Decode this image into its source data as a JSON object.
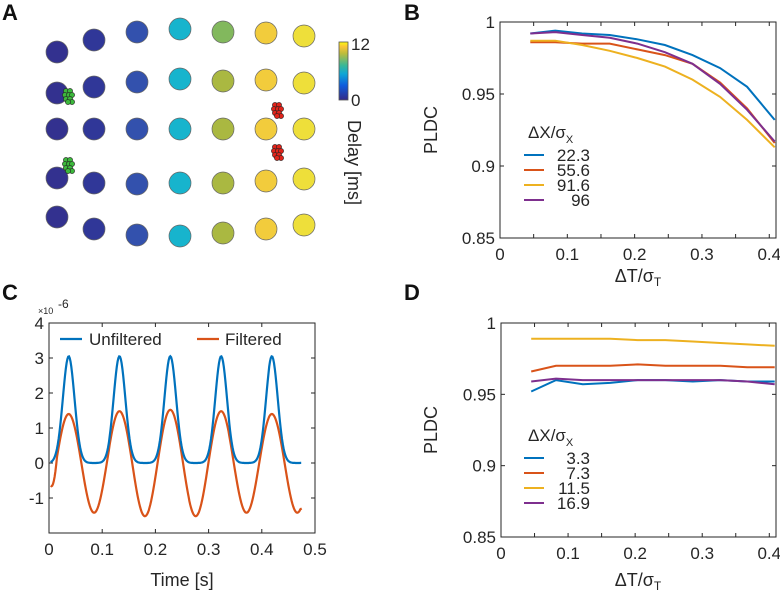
{
  "panels": {
    "a": "A",
    "b": "B",
    "c": "C",
    "d": "D"
  },
  "colors": {
    "blue": "#0072BD",
    "red": "#D95319",
    "yellow": "#EDB120",
    "purple": "#7E2F8E",
    "axis": "#262626"
  },
  "chart_data": [
    {
      "id": "A",
      "type": "scatter",
      "title": "",
      "description_grid": "5 rows x 7 columns electrode array colored by delay",
      "column_delays_ms": [
        0.4,
        0.8,
        2.0,
        5.5,
        8.6,
        11.0,
        11.8
      ],
      "row1_col5_delay_ms": 8.0,
      "colorbar": {
        "min": 0,
        "max": 12,
        "min_label": "0",
        "max_label": "12",
        "label": "Delay [ms]"
      },
      "clusters": [
        {
          "color": "#3cb83c",
          "count": 2
        },
        {
          "color": "#e0241b",
          "count": 2
        }
      ]
    },
    {
      "id": "B",
      "type": "line",
      "xlabel_main": "ΔT/σ",
      "xlabel_sub": "T",
      "ylabel": "PLDC",
      "xlim": [
        0,
        0.41
      ],
      "ylim": [
        0.85,
        1
      ],
      "xticks": [
        0,
        0.1,
        0.2,
        0.3,
        0.4
      ],
      "xtick_labels": [
        "0",
        "0.1",
        "0.2",
        "0.3",
        "0.4"
      ],
      "yticks": [
        0.85,
        0.9,
        0.95,
        1
      ],
      "ytick_labels": [
        "0.85",
        "0.9",
        "0.95",
        "1"
      ],
      "legend_title_main": "ΔX/σ",
      "legend_title_sub": "X",
      "legend_position": "center-left",
      "x": [
        0.045,
        0.082,
        0.122,
        0.163,
        0.204,
        0.245,
        0.286,
        0.327,
        0.367,
        0.408
      ],
      "series": [
        {
          "name": "22.3",
          "color": "#0072BD",
          "values": [
            0.992,
            0.994,
            0.992,
            0.991,
            0.988,
            0.984,
            0.977,
            0.968,
            0.955,
            0.932
          ]
        },
        {
          "name": "55.6",
          "color": "#D95319",
          "values": [
            0.986,
            0.986,
            0.985,
            0.985,
            0.981,
            0.977,
            0.971,
            0.958,
            0.94,
            0.916
          ]
        },
        {
          "name": "91.6",
          "color": "#EDB120",
          "values": [
            0.987,
            0.987,
            0.984,
            0.98,
            0.975,
            0.969,
            0.96,
            0.948,
            0.932,
            0.913
          ]
        },
        {
          "name": "96",
          "color": "#7E2F8E",
          "values": [
            0.992,
            0.993,
            0.991,
            0.989,
            0.985,
            0.979,
            0.971,
            0.957,
            0.939,
            0.917
          ]
        }
      ]
    },
    {
      "id": "C",
      "type": "line",
      "xlabel": "Time [s]",
      "ylabel": "",
      "exponent_label": "×10",
      "exponent_power": "-6",
      "xlim": [
        0,
        0.5
      ],
      "ylim": [
        -2,
        4
      ],
      "xticks": [
        0,
        0.1,
        0.2,
        0.3,
        0.4,
        0.5
      ],
      "xtick_labels": [
        "0",
        "0.1",
        "0.2",
        "0.3",
        "0.4",
        "0.5"
      ],
      "yticks": [
        -1,
        0,
        1,
        2,
        3,
        4
      ],
      "ytick_labels": [
        "-1",
        "0",
        "1",
        "2",
        "3",
        "4"
      ],
      "legend_position": "top",
      "t_range": [
        0.003,
        0.475
      ],
      "period_s": 0.0955,
      "first_peak_s": 0.037,
      "series": [
        {
          "name": "Unfiltered",
          "color": "#0072BD",
          "peak": 3.05,
          "baseline": 0,
          "peak_width_s": 0.011
        },
        {
          "name": "Filtered",
          "color": "#D95319",
          "peak_values": [
            1.4,
            1.48,
            1.52,
            1.48,
            1.4
          ],
          "trough_values": [
            -1.42,
            -1.52,
            -1.52,
            -1.42
          ],
          "start_value": -0.65,
          "end_value": -1.3
        }
      ]
    },
    {
      "id": "D",
      "type": "line",
      "xlabel_main": "ΔT/σ",
      "xlabel_sub": "T",
      "ylabel": "PLDC",
      "xlim": [
        0,
        0.41
      ],
      "ylim": [
        0.85,
        1
      ],
      "xticks": [
        0,
        0.1,
        0.2,
        0.3,
        0.4
      ],
      "xtick_labels": [
        "0",
        "0.1",
        "0.2",
        "0.3",
        "0.4"
      ],
      "yticks": [
        0.85,
        0.9,
        0.95,
        1
      ],
      "ytick_labels": [
        "0.85",
        "0.9",
        "0.95",
        "1"
      ],
      "legend_title_main": "ΔX/σ",
      "legend_title_sub": "X",
      "legend_position": "center-left",
      "x": [
        0.045,
        0.082,
        0.122,
        0.163,
        0.204,
        0.245,
        0.286,
        0.327,
        0.367,
        0.408
      ],
      "series": [
        {
          "name": "3.3",
          "color": "#0072BD",
          "values": [
            0.952,
            0.96,
            0.957,
            0.958,
            0.96,
            0.96,
            0.959,
            0.96,
            0.959,
            0.959
          ]
        },
        {
          "name": "7.3",
          "color": "#D95319",
          "values": [
            0.966,
            0.97,
            0.97,
            0.97,
            0.971,
            0.97,
            0.97,
            0.97,
            0.969,
            0.969
          ]
        },
        {
          "name": "11.5",
          "color": "#EDB120",
          "values": [
            0.989,
            0.989,
            0.989,
            0.989,
            0.988,
            0.988,
            0.987,
            0.986,
            0.985,
            0.984
          ]
        },
        {
          "name": "16.9",
          "color": "#7E2F8E",
          "values": [
            0.959,
            0.961,
            0.96,
            0.96,
            0.96,
            0.96,
            0.96,
            0.96,
            0.959,
            0.957
          ]
        }
      ]
    }
  ]
}
